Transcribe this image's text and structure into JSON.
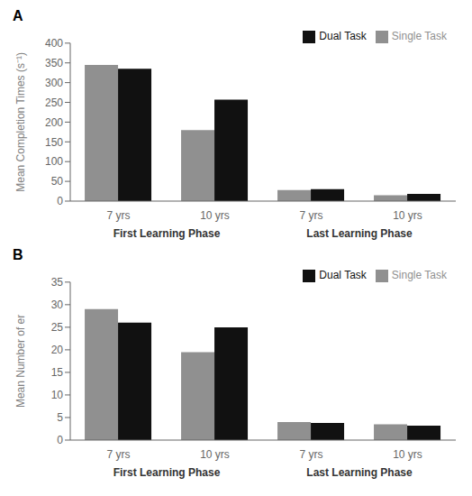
{
  "chart_data": [
    {
      "type": "bar",
      "title": "A",
      "categories": [
        "7 yrs",
        "10 yrs",
        "7 yrs",
        "10 yrs"
      ],
      "series": [
        {
          "name": "Single Task",
          "color": "#909090",
          "values": [
            345,
            180,
            28,
            15
          ]
        },
        {
          "name": "Dual Task",
          "color": "#111111",
          "values": [
            335,
            257,
            30,
            18
          ]
        }
      ],
      "ylabel": "Mean Completion Times (s⁻¹)",
      "annotations": [
        "First Learning Phase",
        "Last Learning Phase"
      ],
      "ylim": [
        0,
        400
      ],
      "yticks": [
        0,
        50,
        100,
        150,
        200,
        250,
        300,
        350,
        400
      ],
      "legend": "upper right",
      "grid": false
    },
    {
      "type": "bar",
      "title": "B",
      "categories": [
        "7 yrs",
        "10 yrs",
        "7 yrs",
        "10 yrs"
      ],
      "series": [
        {
          "name": "Single Task",
          "color": "#909090",
          "values": [
            29,
            19.5,
            4,
            3.5
          ]
        },
        {
          "name": "Dual Task",
          "color": "#111111",
          "values": [
            26,
            25,
            3.8,
            3.2
          ]
        }
      ],
      "ylabel": "Mean Number of er",
      "annotations": [
        "First Learning Phase",
        "Last Learning Phase"
      ],
      "ylim": [
        0,
        35
      ],
      "yticks": [
        0,
        5,
        10,
        15,
        20,
        25,
        30,
        35
      ],
      "legend": "upper right",
      "grid": false
    }
  ]
}
